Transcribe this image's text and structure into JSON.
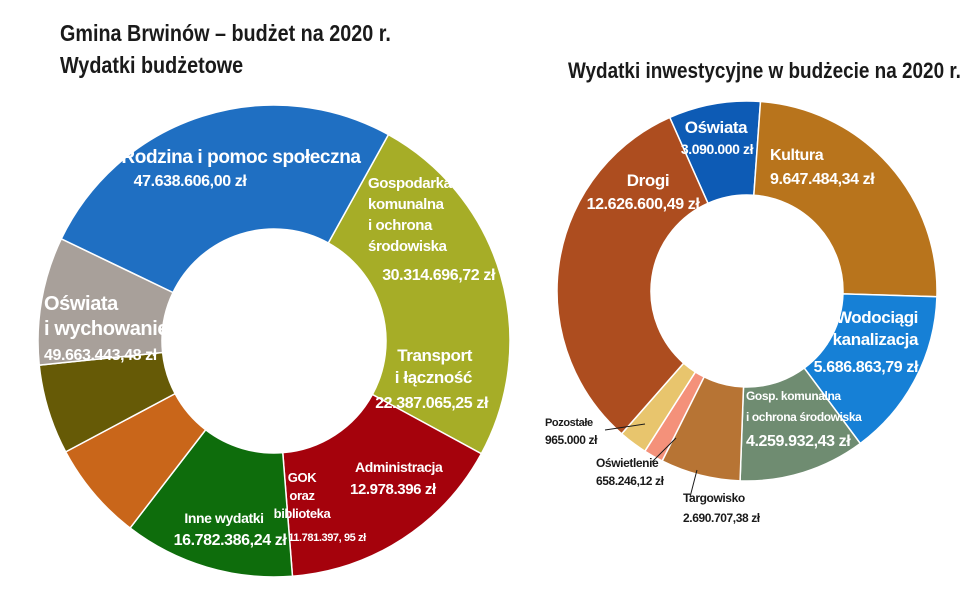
{
  "titles": {
    "main_line1": "Gmina Brwinów – budżet na 2020 r.",
    "main_line2": "Wydatki budżetowe",
    "right": "Wydatki inwestycyjne w budżecie na 2020 r."
  },
  "chart_data": [
    {
      "type": "pie",
      "variant": "donut",
      "title": "Wydatki budżetowe",
      "unit": "zł",
      "slices": [
        {
          "label": "Rodzina i pomoc społeczna",
          "value": 47638606.0,
          "value_text": "47.638.606,00 zł",
          "color": "#a6ad27"
        },
        {
          "label": "Gospodarka komunalna i ochrona środowiska",
          "value": 30314696.72,
          "value_text": "30.314.696,72 zł",
          "color": "#a5020c"
        },
        {
          "label": "Transport i łączność",
          "value": 22387065.25,
          "value_text": "22.387.065,25 zł",
          "color": "#0e6d0c"
        },
        {
          "label": "Administracja",
          "value": 12978396,
          "value_text": "12.978.396 zł",
          "color": "#c9661a"
        },
        {
          "label": "GOK oraz biblioteka",
          "value": 11781397.95,
          "value_text": "11.781.397, 95 zł",
          "color": "#665a06"
        },
        {
          "label": "Inne wydatki",
          "value": 16782386.24,
          "value_text": "16.782.386,24 zł",
          "color": "#a8a09a"
        },
        {
          "label": "Oświata i wychowanie",
          "value": 49663443.48,
          "value_text": "49.663.443,48 zł",
          "color": "#1f6fc2"
        }
      ]
    },
    {
      "type": "pie",
      "variant": "donut",
      "title": "Wydatki inwestycyjne w budżecie na 2020 r.",
      "unit": "zł",
      "slices": [
        {
          "label": "Oświata",
          "value": 3090000,
          "value_text": "3.090.000 zł",
          "color": "#0d5bb5"
        },
        {
          "label": "Kultura",
          "value": 9647484.34,
          "value_text": "9.647.484,34 zł",
          "color": "#b8741c"
        },
        {
          "label": "Wodociągi i kanalizacja",
          "value": 5686863.79,
          "value_text": "5.686.863,79 zł",
          "color": "#1680d6"
        },
        {
          "label": "Gosp. komunalna i ochrona środowiska",
          "value": 4259932.43,
          "value_text": "4.259.932,43 zł",
          "color": "#6f8c71"
        },
        {
          "label": "Targowisko",
          "value": 2690707.38,
          "value_text": "2.690.707,38 zł",
          "color": "#b77434"
        },
        {
          "label": "Oświetlenie",
          "value": 658246.12,
          "value_text": "658.246,12 zł",
          "color": "#f4917a"
        },
        {
          "label": "Pozostałe",
          "value": 965000,
          "value_text": "965.000 zł",
          "color": "#e8c56d"
        },
        {
          "label": "Drogi",
          "value": 12626600.49,
          "value_text": "12.626.600,49 zł",
          "color": "#ad4d1f"
        }
      ]
    }
  ]
}
